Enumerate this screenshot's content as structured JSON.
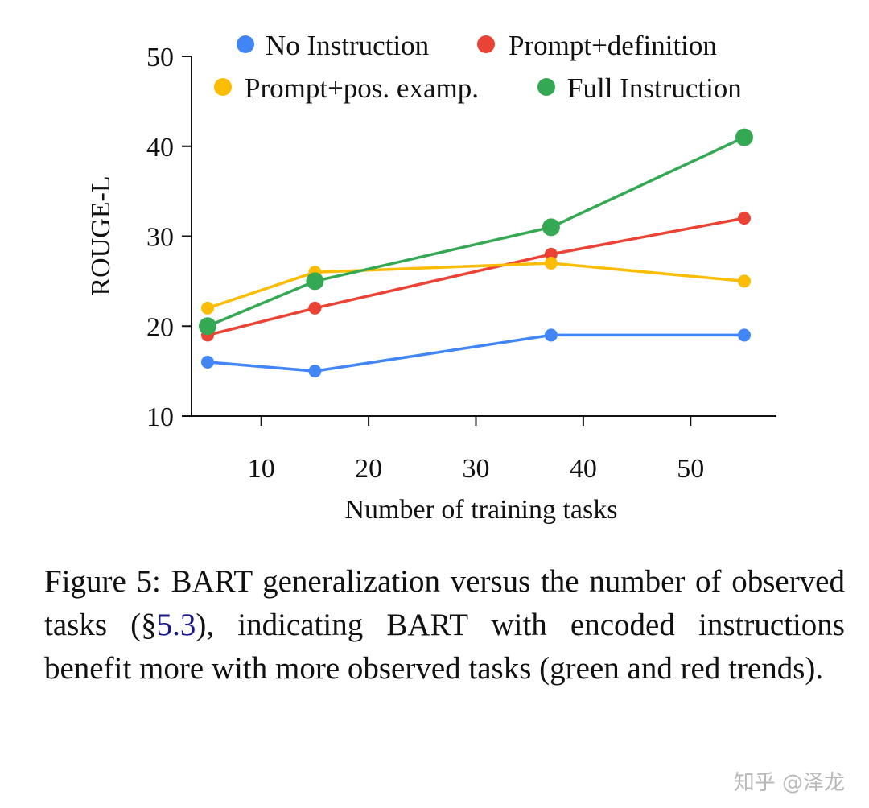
{
  "chart_data": {
    "type": "line",
    "xlabel": "Number of training tasks",
    "ylabel": "ROUGE-L",
    "xlim": [
      3.5,
      58
    ],
    "ylim": [
      10,
      50
    ],
    "xticks": [
      10,
      20,
      30,
      40,
      50
    ],
    "yticks": [
      10,
      20,
      30,
      40,
      50
    ],
    "grid": false,
    "legend_position": "top",
    "x": [
      5,
      15,
      37,
      55
    ],
    "series": [
      {
        "name": "No Instruction",
        "color": "#4285f4",
        "values": [
          16,
          15,
          19,
          19
        ],
        "marker": "small"
      },
      {
        "name": "Prompt+definition",
        "color": "#ea4335",
        "values": [
          19,
          22,
          28,
          32
        ],
        "marker": "small"
      },
      {
        "name": "Prompt+pos. examp.",
        "color": "#fbbc04",
        "values": [
          22,
          26,
          27,
          25
        ],
        "marker": "small"
      },
      {
        "name": "Full Instruction",
        "color": "#34a853",
        "values": [
          20,
          25,
          31,
          41
        ],
        "marker": "large"
      }
    ]
  },
  "caption": {
    "prefix": "Figure 5: BART generalization versus the number of observed tasks (§",
    "ref": "5.3",
    "suffix": "), indicating BART with encoded instructions benefit more with more observed tasks (green and red trends)."
  },
  "watermark": "知乎 @泽龙"
}
